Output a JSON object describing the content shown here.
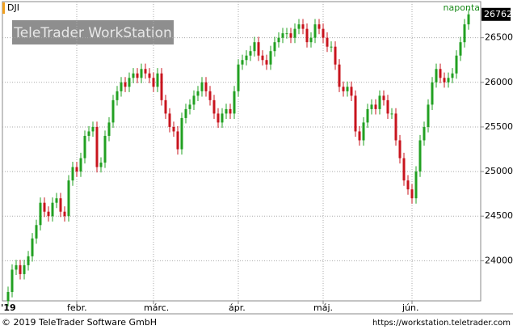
{
  "chart_data": {
    "type": "candlestick",
    "title": "DJI",
    "subtitle": "naponta",
    "watermark": "TeleTrader WorkStation",
    "categories": [
      "'19",
      null,
      null,
      null,
      null,
      null,
      null,
      null,
      null,
      null,
      null,
      null,
      null,
      null,
      null,
      null,
      null,
      "febr.",
      null,
      null,
      null,
      null,
      null,
      null,
      null,
      null,
      null,
      null,
      null,
      null,
      null,
      null,
      null,
      null,
      null,
      null,
      "márc.",
      null,
      null,
      null,
      null,
      null,
      null,
      null,
      null,
      null,
      null,
      null,
      null,
      null,
      null,
      null,
      null,
      null,
      null,
      null,
      null,
      "ápr.",
      null,
      null,
      null,
      null,
      null,
      null,
      null,
      null,
      null,
      null,
      null,
      null,
      null,
      null,
      null,
      null,
      null,
      null,
      null,
      null,
      "máj.",
      null,
      null,
      null,
      null,
      null,
      null,
      null,
      null,
      null,
      null,
      null,
      null,
      null,
      null,
      null,
      null,
      null,
      null,
      null,
      null,
      null,
      "jún.",
      null,
      null,
      null,
      null,
      null,
      null,
      null,
      null,
      null,
      null,
      null,
      null,
      null,
      null
    ],
    "open": [
      23550,
      23650,
      23900,
      23950,
      23850,
      23950,
      24050,
      24250,
      24400,
      24650,
      24550,
      24500,
      24650,
      24700,
      24550,
      24500,
      24900,
      25050,
      25000,
      25150,
      25400,
      25450,
      25500,
      25050,
      25100,
      25400,
      25550,
      25800,
      25900,
      26000,
      25950,
      26050,
      26100,
      26050,
      26150,
      26100,
      26050,
      25950,
      26100,
      25800,
      25650,
      25500,
      25450,
      25250,
      25600,
      25700,
      25750,
      25850,
      25900,
      26000,
      25900,
      25800,
      25650,
      25550,
      25650,
      25700,
      25650,
      25900,
      26200,
      26250,
      26300,
      26350,
      26450,
      26300,
      26250,
      26200,
      26350,
      26450,
      26500,
      26550,
      26550,
      26500,
      26600,
      26650,
      26600,
      26450,
      26500,
      26650,
      26600,
      26500,
      26400,
      26400,
      26200,
      25950,
      25900,
      25950,
      25850,
      25450,
      25350,
      25550,
      25700,
      25750,
      25700,
      25850,
      25800,
      25650,
      25650,
      25350,
      25150,
      24900,
      24800,
      24700,
      25000,
      25350,
      25500,
      25750,
      26000,
      26150,
      26050,
      26000,
      26050,
      26100,
      26300,
      26450,
      26650
    ],
    "high": [
      23710,
      23960,
      24010,
      24010,
      24010,
      24110,
      24310,
      24460,
      24710,
      24710,
      24610,
      24710,
      24760,
      24760,
      24610,
      24960,
      25110,
      25110,
      25210,
      25460,
      25510,
      25560,
      25560,
      25160,
      25460,
      25610,
      25860,
      25960,
      26060,
      26060,
      26110,
      26160,
      26160,
      26210,
      26210,
      26160,
      26110,
      26160,
      26160,
      25860,
      25710,
      25560,
      25510,
      25660,
      25760,
      25810,
      25910,
      25960,
      26060,
      26060,
      25960,
      25860,
      25710,
      25710,
      25760,
      25760,
      25960,
      26260,
      26310,
      26360,
      26410,
      26510,
      26510,
      26360,
      26310,
      26410,
      26510,
      26560,
      26610,
      26610,
      26610,
      26660,
      26710,
      26710,
      26660,
      26560,
      26710,
      26710,
      26660,
      26560,
      26460,
      26460,
      26260,
      26010,
      26010,
      26010,
      25910,
      25510,
      25610,
      25760,
      25810,
      25810,
      25910,
      25910,
      25860,
      25710,
      25710,
      25410,
      25210,
      24960,
      24860,
      25060,
      25410,
      25560,
      25810,
      26060,
      26210,
      26210,
      26110,
      26110,
      26160,
      26360,
      26510,
      26710,
      26822
    ],
    "low": [
      23490,
      23590,
      23840,
      23790,
      23790,
      23890,
      23990,
      24190,
      24340,
      24490,
      24440,
      24440,
      24590,
      24490,
      24440,
      24440,
      24840,
      24940,
      24940,
      25090,
      25340,
      25390,
      24990,
      24990,
      25040,
      25340,
      25490,
      25740,
      25840,
      25890,
      25890,
      25990,
      25990,
      25990,
      26040,
      25990,
      25890,
      25890,
      25740,
      25590,
      25440,
      25390,
      25190,
      25190,
      25540,
      25640,
      25690,
      25790,
      25840,
      25840,
      25740,
      25590,
      25490,
      25490,
      25590,
      25590,
      25590,
      25840,
      26140,
      26190,
      26240,
      26290,
      26240,
      26190,
      26140,
      26140,
      26290,
      26390,
      26440,
      26490,
      26440,
      26440,
      26540,
      26540,
      26390,
      26390,
      26440,
      26540,
      26440,
      26340,
      26340,
      26140,
      25890,
      25840,
      25840,
      25790,
      25390,
      25290,
      25290,
      25490,
      25640,
      25640,
      25640,
      25740,
      25590,
      25590,
      25290,
      25090,
      24840,
      24740,
      24640,
      24640,
      24940,
      25290,
      25440,
      25690,
      25940,
      25990,
      25940,
      25940,
      25990,
      26040,
      26240,
      26390,
      26590
    ],
    "close": [
      23650,
      23900,
      23950,
      23850,
      23950,
      24050,
      24250,
      24400,
      24650,
      24550,
      24500,
      24650,
      24700,
      24550,
      24500,
      24900,
      25050,
      25000,
      25150,
      25400,
      25450,
      25500,
      25050,
      25100,
      25400,
      25550,
      25800,
      25900,
      26000,
      25950,
      26050,
      26100,
      26050,
      26150,
      26100,
      26050,
      25950,
      26100,
      25800,
      25650,
      25500,
      25450,
      25250,
      25600,
      25700,
      25750,
      25850,
      25900,
      26000,
      25900,
      25800,
      25650,
      25550,
      25650,
      25700,
      25650,
      25900,
      26200,
      26250,
      26300,
      26350,
      26450,
      26300,
      26250,
      26200,
      26350,
      26450,
      26500,
      26550,
      26550,
      26500,
      26600,
      26650,
      26600,
      26450,
      26500,
      26650,
      26600,
      26500,
      26400,
      26400,
      26200,
      25950,
      25900,
      25950,
      25850,
      25450,
      25350,
      25550,
      25700,
      25750,
      25700,
      25850,
      25800,
      25650,
      25650,
      25350,
      25150,
      24900,
      24800,
      24700,
      25000,
      25350,
      25500,
      25750,
      26000,
      26150,
      26050,
      26000,
      26050,
      26100,
      26300,
      26450,
      26650,
      26762
    ],
    "up_color": "#22a022",
    "down_color": "#c8141e",
    "ylim": [
      23550,
      26905
    ],
    "yticks": [
      24000,
      24500,
      25000,
      25500,
      26000,
      26500
    ],
    "grid": true
  },
  "footer": {
    "copyright": "© 2019 TeleTrader Software GmbH",
    "url": "https://workstation.teletrader.com"
  }
}
